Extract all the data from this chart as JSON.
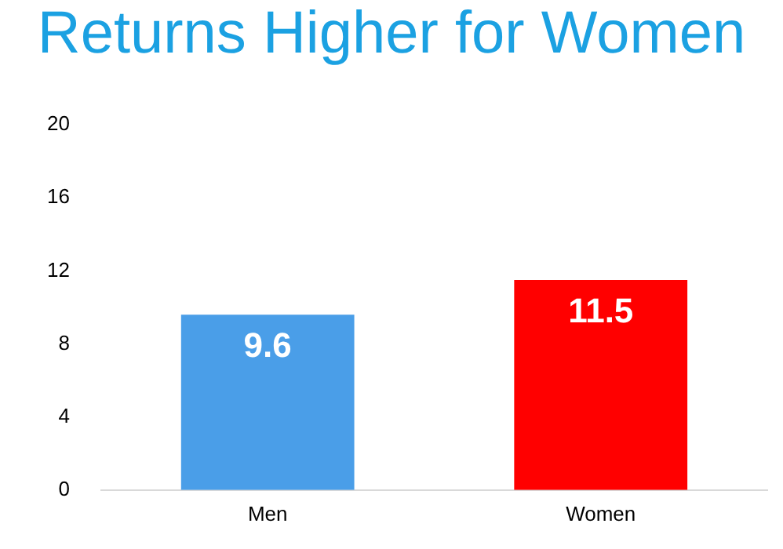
{
  "chart_data": {
    "type": "bar",
    "title": "Returns Higher for Women",
    "categories": [
      "Men",
      "Women"
    ],
    "values": [
      9.6,
      11.5
    ],
    "colors": [
      "#4a9ee8",
      "#ff0000"
    ],
    "ylim": [
      0,
      20
    ],
    "yticks": [
      0,
      4,
      8,
      12,
      16,
      20
    ],
    "grid": false,
    "data_labels": true
  }
}
